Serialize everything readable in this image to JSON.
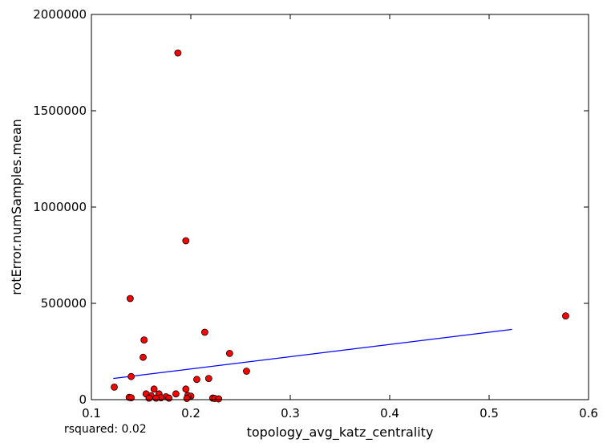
{
  "chart_data": {
    "type": "scatter",
    "title": "",
    "xlabel": "topology_avg_katz_centrality",
    "ylabel": "rotError.numSamples.mean",
    "xlim": [
      0.1,
      0.6
    ],
    "ylim": [
      0,
      2000000
    ],
    "x_ticks": [
      "0.1",
      "0.2",
      "0.3",
      "0.4",
      "0.5",
      "0.6"
    ],
    "y_ticks": [
      "0",
      "500000",
      "1000000",
      "1500000",
      "2000000"
    ],
    "x_tick_values": [
      0.1,
      0.2,
      0.3,
      0.4,
      0.5,
      0.6
    ],
    "y_tick_values": [
      0,
      500000,
      1000000,
      1500000,
      2000000
    ],
    "grid": false,
    "points": [
      {
        "x": 0.187,
        "y": 1800000
      },
      {
        "x": 0.195,
        "y": 825000
      },
      {
        "x": 0.139,
        "y": 525000
      },
      {
        "x": 0.577,
        "y": 435000
      },
      {
        "x": 0.214,
        "y": 350000
      },
      {
        "x": 0.153,
        "y": 310000
      },
      {
        "x": 0.239,
        "y": 240000
      },
      {
        "x": 0.152,
        "y": 220000
      },
      {
        "x": 0.256,
        "y": 148000
      },
      {
        "x": 0.14,
        "y": 120000
      },
      {
        "x": 0.218,
        "y": 110000
      },
      {
        "x": 0.206,
        "y": 105000
      },
      {
        "x": 0.123,
        "y": 65000
      },
      {
        "x": 0.163,
        "y": 55000
      },
      {
        "x": 0.195,
        "y": 55000
      },
      {
        "x": 0.155,
        "y": 30000
      },
      {
        "x": 0.168,
        "y": 30000
      },
      {
        "x": 0.185,
        "y": 30000
      },
      {
        "x": 0.16,
        "y": 20000
      },
      {
        "x": 0.197,
        "y": 22000
      },
      {
        "x": 0.2,
        "y": 18000
      },
      {
        "x": 0.175,
        "y": 15000
      },
      {
        "x": 0.138,
        "y": 12000
      },
      {
        "x": 0.14,
        "y": 10000
      },
      {
        "x": 0.17,
        "y": 10000
      },
      {
        "x": 0.158,
        "y": 8000
      },
      {
        "x": 0.165,
        "y": 8000
      },
      {
        "x": 0.178,
        "y": 8000
      },
      {
        "x": 0.196,
        "y": 6000
      },
      {
        "x": 0.222,
        "y": 8000
      },
      {
        "x": 0.224,
        "y": 6000
      },
      {
        "x": 0.228,
        "y": 4000
      }
    ],
    "fit_line": {
      "x": [
        0.122,
        0.523
      ],
      "y": [
        110000,
        365000
      ]
    },
    "point_color": "#ff0000",
    "point_edge_color": "#000000",
    "line_color": "#0000ff"
  },
  "rsquared_text": "rsquared: 0.02"
}
